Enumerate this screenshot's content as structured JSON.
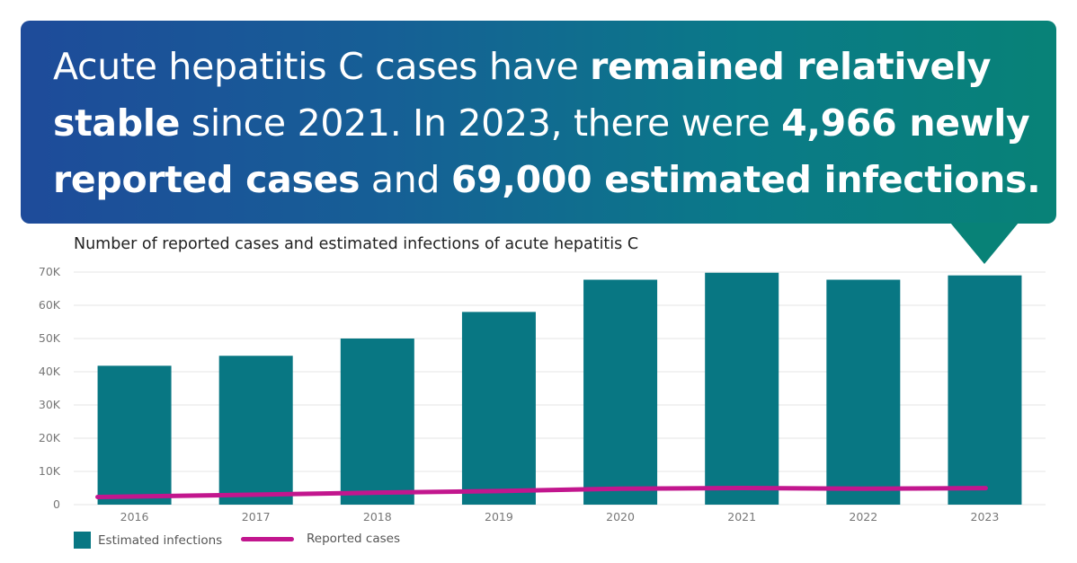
{
  "headline": {
    "parts": [
      {
        "text": "Acute hepatitis C cases have ",
        "bold": false
      },
      {
        "text": "remained relatively stable",
        "bold": true
      },
      {
        "text": " since 2021. In 2023, there were ",
        "bold": false
      },
      {
        "text": "4,966 newly reported cases",
        "bold": true
      },
      {
        "text": " and ",
        "bold": false
      },
      {
        "text": "69,000 estimated infections.",
        "bold": true
      }
    ]
  },
  "colors": {
    "bar": "#087783",
    "line": "#c2168e",
    "banner_start": "#1e4b9a",
    "banner_end": "#088277",
    "arrow": "#088277"
  },
  "chart_data": {
    "type": "bar",
    "title": "Number of reported cases and estimated infections of acute hepatitis C",
    "categories": [
      "2016",
      "2017",
      "2018",
      "2019",
      "2020",
      "2021",
      "2022",
      "2023"
    ],
    "series": [
      {
        "name": "Estimated infections",
        "type": "bar",
        "values": [
          41800,
          44800,
          50000,
          58000,
          67700,
          69800,
          67700,
          69000
        ]
      },
      {
        "name": "Reported cases",
        "type": "line",
        "values": [
          2300,
          3000,
          3600,
          4100,
          4800,
          5000,
          4800,
          4966
        ]
      }
    ],
    "ylim": [
      0,
      70000
    ],
    "yticks": [
      0,
      10000,
      20000,
      30000,
      40000,
      50000,
      60000,
      70000
    ],
    "ytick_labels": [
      "0",
      "10K",
      "20K",
      "30K",
      "40K",
      "50K",
      "60K",
      "70K"
    ],
    "xlabel": "",
    "ylabel": "",
    "grid": true,
    "legend_position": "bottom-left"
  },
  "legend": {
    "items": [
      {
        "label": "Estimated infections"
      },
      {
        "label": "Reported cases"
      }
    ]
  }
}
